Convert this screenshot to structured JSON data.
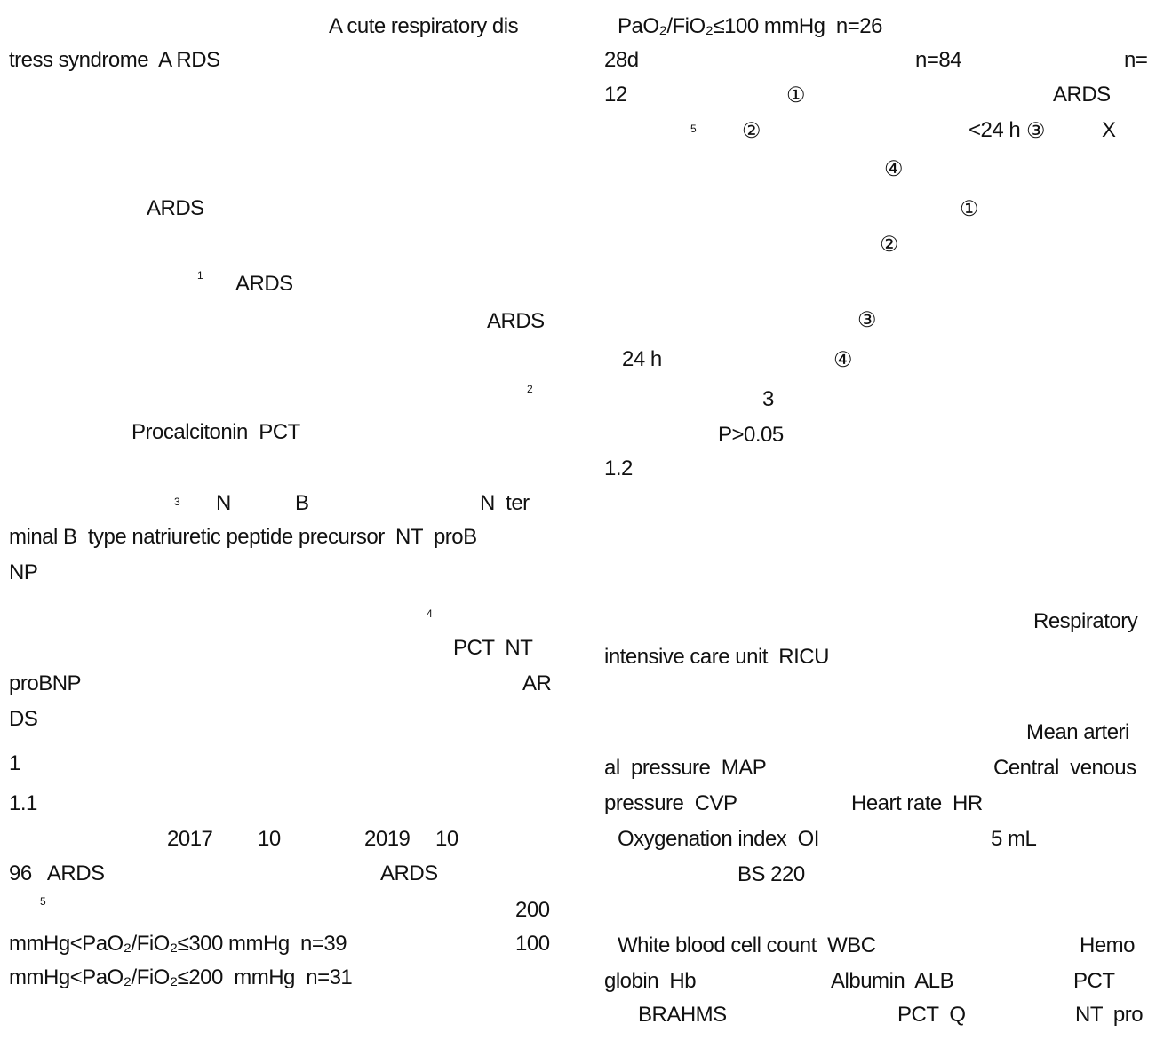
{
  "left_column": [
    "A cute respiratory dis",
    "tress syndrome  A RDS",
    "ARDS",
    "1",
    "ARDS",
    "ARDS",
    "2",
    "Procalcitonin  PCT",
    "3",
    "N",
    "B",
    "N  ter",
    "minal B  type natriuretic peptide precursor  NT  proB",
    "NP",
    "4",
    "PCT  NT",
    "proBNP",
    "AR",
    "DS",
    "1",
    "1.1",
    "2017",
    "10",
    "2019",
    "10",
    "96   ARDS",
    "ARDS",
    "5",
    "200",
    "mmHg<PaO₂/FiO₂≤300 mmHg  n=39",
    "100",
    "mmHg<PaO₂/FiO₂≤200  mmHg  n=31"
  ],
  "right_column": [
    "PaO₂/FiO₂≤100 mmHg  n=26",
    "28d",
    "n=84",
    "n=",
    "12",
    "①",
    "ARDS",
    "5",
    "②",
    "<24 h",
    "③",
    "X",
    "④",
    "①",
    "②",
    "③",
    "24 h",
    "④",
    "3",
    "P>0.05",
    "1.2",
    "Respiratory",
    "intensive care unit  RICU",
    "Mean arteri",
    "al  pressure  MAP",
    "Central  venous",
    "pressure  CVP",
    "Heart rate  HR",
    "Oxygenation index  OI",
    "5 mL",
    "BS 220",
    "White blood cell count  WBC",
    "Hemo",
    "globin  Hb",
    "Albumin  ALB",
    "PCT",
    "BRAHMS",
    "PCT  Q",
    "NT  pro"
  ]
}
